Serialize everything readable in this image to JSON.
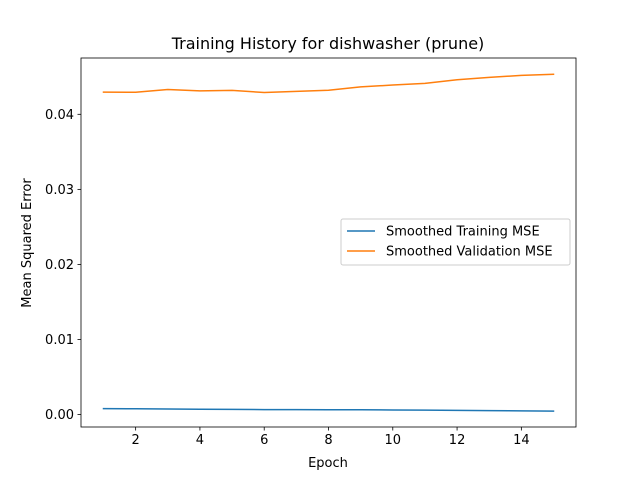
{
  "chart_data": {
    "type": "line",
    "title": "Training History for dishwasher (prune)",
    "xlabel": "Epoch",
    "ylabel": "Mean Squared Error",
    "xlim": [
      0.3,
      15.7
    ],
    "ylim": [
      -0.00165,
      0.0475
    ],
    "x_ticks": [
      2,
      4,
      6,
      8,
      10,
      12,
      14
    ],
    "y_ticks": [
      0.0,
      0.01,
      0.02,
      0.03,
      0.04
    ],
    "y_tick_labels": [
      "0.00",
      "0.01",
      "0.02",
      "0.03",
      "0.04"
    ],
    "grid": false,
    "legend_position": "center-right",
    "x": [
      1,
      2,
      3,
      4,
      5,
      6,
      7,
      8,
      9,
      10,
      11,
      12,
      13,
      14,
      15
    ],
    "series": [
      {
        "name": "Smoothed Training MSE",
        "color": "#1f77b4",
        "values": [
          0.0008,
          0.00078,
          0.00075,
          0.00072,
          0.00069,
          0.00067,
          0.00066,
          0.00065,
          0.00064,
          0.00062,
          0.00059,
          0.00056,
          0.00053,
          0.0005,
          0.00047
        ]
      },
      {
        "name": "Smoothed Validation MSE",
        "color": "#ff7f0e",
        "values": [
          0.04295,
          0.04294,
          0.0433,
          0.04312,
          0.04318,
          0.0429,
          0.04305,
          0.04321,
          0.04366,
          0.0439,
          0.04412,
          0.0446,
          0.04492,
          0.04518,
          0.04533
        ]
      }
    ]
  }
}
